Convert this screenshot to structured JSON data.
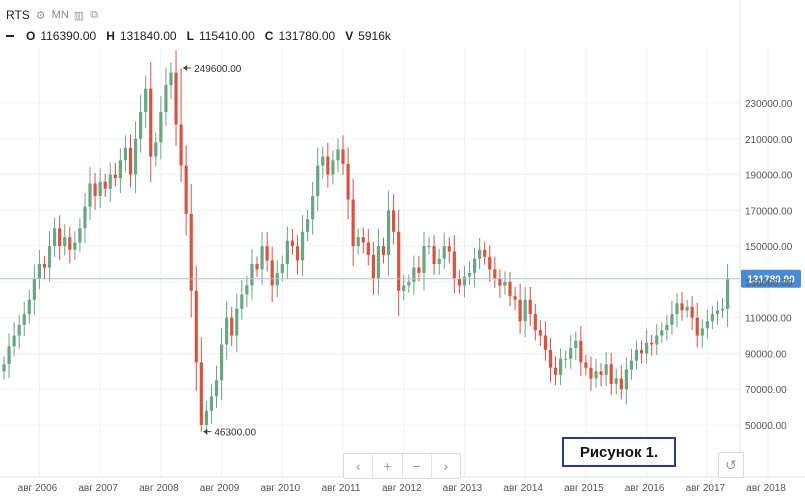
{
  "header": {
    "symbol": "RTS",
    "gear_icon": "gear-icon",
    "timeframe": "MN",
    "bars_icon": "bars-icon",
    "compare_icon": "compare-icon",
    "ohlc": {
      "o_label": "O",
      "o_value": "116390.00",
      "h_label": "H",
      "h_value": "131840.00",
      "l_label": "L",
      "l_value": "115410.00",
      "c_label": "C",
      "c_value": "131780.00",
      "v_label": "V",
      "v_value": "5916k"
    }
  },
  "navigation": {
    "prev_icon": "‹",
    "zoom_in_icon": "+",
    "zoom_out_icon": "−",
    "next_icon": "›",
    "reset_icon": "↺"
  },
  "figure_label": "Рисунок 1.",
  "chart_data": {
    "type": "candlestick",
    "y_range": [
      40000,
      265000
    ],
    "y_ticks": [
      50000,
      70000,
      90000,
      110000,
      130000,
      150000,
      170000,
      190000,
      210000,
      230000
    ],
    "y_tick_labels": [
      "50000.00",
      "70000.00",
      "90000.00",
      "110000.00",
      "130000.00",
      "150000.00",
      "170000.00",
      "190000.00",
      "210000.00",
      "230000.00"
    ],
    "x_tick_labels": [
      "авг 2006",
      "авг 2007",
      "авг 2008",
      "авг 2009",
      "авг 2010",
      "авг 2011",
      "авг 2012",
      "авг 2013",
      "авг 2014",
      "авг 2015",
      "авг 2016",
      "авг 2017",
      "авг 2018"
    ],
    "last_price": 131780,
    "last_price_label": "131780.00",
    "annotations": [
      {
        "text": "249600.00",
        "value": 249600
      },
      {
        "text": "46300.00",
        "value": 46300
      }
    ],
    "up_color": "#6ba583",
    "down_color": "#d75442",
    "closes": [
      84000,
      94000,
      100000,
      106000,
      112000,
      120000,
      132000,
      140000,
      138000,
      150000,
      160000,
      150000,
      155000,
      148000,
      152000,
      160000,
      172000,
      185000,
      178000,
      186000,
      182000,
      190000,
      188000,
      198000,
      205000,
      190000,
      210000,
      225000,
      238000,
      200000,
      208000,
      225000,
      240000,
      247000,
      218000,
      195000,
      168000,
      125000,
      85000,
      50000,
      58000,
      66000,
      75000,
      95000,
      110000,
      100000,
      115000,
      123000,
      128000,
      140000,
      137000,
      150000,
      142000,
      128000,
      135000,
      140000,
      153000,
      150000,
      142000,
      158000,
      165000,
      178000,
      195000,
      200000,
      190000,
      198000,
      204000,
      196000,
      176000,
      150000,
      155000,
      152000,
      145000,
      132000,
      150000,
      145000,
      170000,
      158000,
      125000,
      128000,
      130000,
      138000,
      135000,
      150000,
      150000,
      140000,
      143000,
      150000,
      147000,
      132000,
      128000,
      133000,
      135000,
      143000,
      148000,
      144000,
      137000,
      132000,
      128000,
      130000,
      122000,
      120000,
      108000,
      120000,
      112000,
      103000,
      100000,
      92000,
      82000,
      78000,
      87000,
      87000,
      93000,
      97000,
      85000,
      82000,
      76000,
      80000,
      78000,
      84000,
      73000,
      76000,
      70000,
      81000,
      86000,
      92000,
      90000,
      96000,
      95000,
      100000,
      103000,
      106000,
      112000,
      118000,
      114000,
      116000,
      110000,
      100000,
      104000,
      108000,
      112000,
      114000,
      115000,
      131780
    ]
  }
}
